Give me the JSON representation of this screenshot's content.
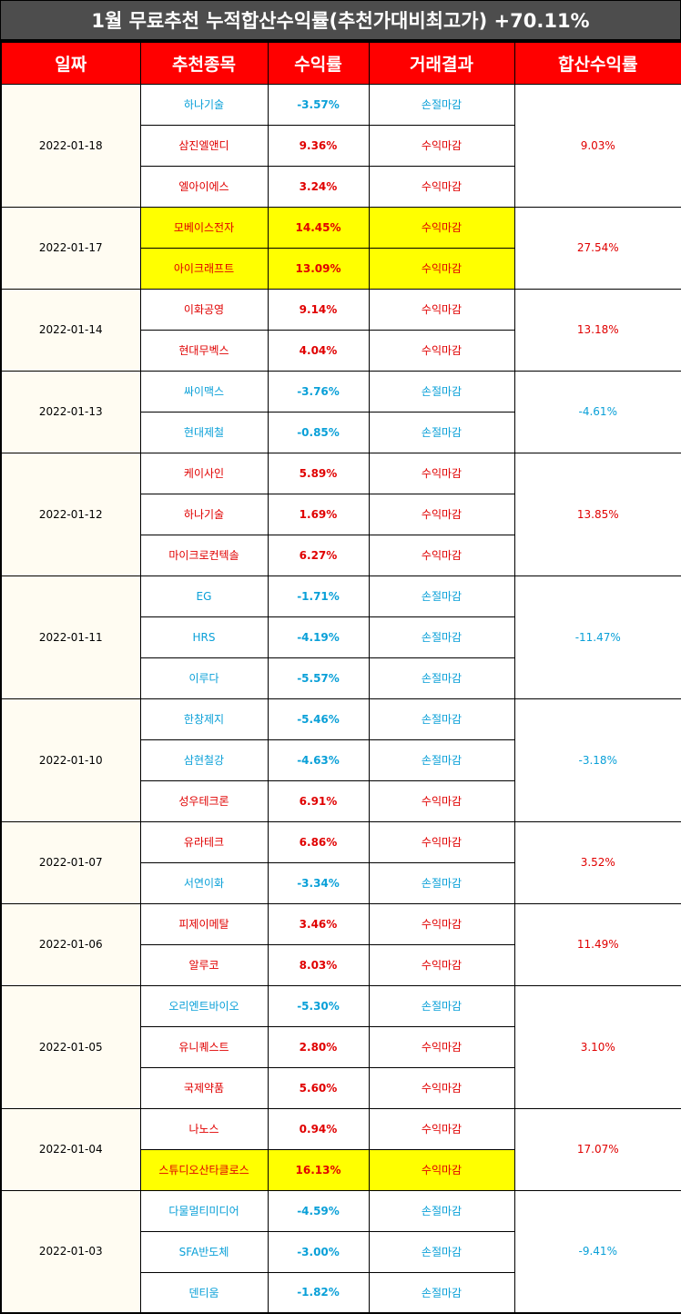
{
  "title": "1월 무료추천 누적합산수익률(추천가대비최고가) +70.11%",
  "headers": [
    "일짜",
    "추천종목",
    "수익률",
    "거래결과",
    "합산수익률"
  ],
  "colors": {
    "header_bg": "#ff0000",
    "title_bg": "#4d4d4d",
    "positive": "#e00000",
    "negative": "#0aa0d8",
    "highlight": "#ffff00",
    "date_bg": "#fffcf2"
  },
  "groups": [
    {
      "date": "2022-01-18",
      "total": "9.03%",
      "rows": [
        {
          "name": "하나기술",
          "pct": "-3.57%",
          "result": "손절마감"
        },
        {
          "name": "삼진엘앤디",
          "pct": "9.36%",
          "result": "수익마감"
        },
        {
          "name": "엘아이에스",
          "pct": "3.24%",
          "result": "수익마감"
        }
      ]
    },
    {
      "date": "2022-01-17",
      "total": "27.54%",
      "rows": [
        {
          "name": "모베이스전자",
          "pct": "14.45%",
          "result": "수익마감",
          "highlight": true
        },
        {
          "name": "아이크래프트",
          "pct": "13.09%",
          "result": "수익마감",
          "highlight": true
        }
      ]
    },
    {
      "date": "2022-01-14",
      "total": "13.18%",
      "rows": [
        {
          "name": "이화공영",
          "pct": "9.14%",
          "result": "수익마감"
        },
        {
          "name": "현대무벡스",
          "pct": "4.04%",
          "result": "수익마감"
        }
      ]
    },
    {
      "date": "2022-01-13",
      "total": "-4.61%",
      "rows": [
        {
          "name": "싸이맥스",
          "pct": "-3.76%",
          "result": "손절마감"
        },
        {
          "name": "현대제철",
          "pct": "-0.85%",
          "result": "손절마감"
        }
      ]
    },
    {
      "date": "2022-01-12",
      "total": "13.85%",
      "rows": [
        {
          "name": "케이사인",
          "pct": "5.89%",
          "result": "수익마감"
        },
        {
          "name": "하나기술",
          "pct": "1.69%",
          "result": "수익마감"
        },
        {
          "name": "마이크로컨텍솔",
          "pct": "6.27%",
          "result": "수익마감"
        }
      ]
    },
    {
      "date": "2022-01-11",
      "total": "-11.47%",
      "rows": [
        {
          "name": "EG",
          "pct": "-1.71%",
          "result": "손절마감"
        },
        {
          "name": "HRS",
          "pct": "-4.19%",
          "result": "손절마감"
        },
        {
          "name": "이루다",
          "pct": "-5.57%",
          "result": "손절마감"
        }
      ]
    },
    {
      "date": "2022-01-10",
      "total": "-3.18%",
      "rows": [
        {
          "name": "한창제지",
          "pct": "-5.46%",
          "result": "손절마감"
        },
        {
          "name": "삼현철강",
          "pct": "-4.63%",
          "result": "손절마감"
        },
        {
          "name": "성우테크론",
          "pct": "6.91%",
          "result": "수익마감"
        }
      ]
    },
    {
      "date": "2022-01-07",
      "total": "3.52%",
      "rows": [
        {
          "name": "유라테크",
          "pct": "6.86%",
          "result": "수익마감"
        },
        {
          "name": "서연이화",
          "pct": "-3.34%",
          "result": "손절마감"
        }
      ]
    },
    {
      "date": "2022-01-06",
      "total": "11.49%",
      "rows": [
        {
          "name": "피제이메탈",
          "pct": "3.46%",
          "result": "수익마감"
        },
        {
          "name": "알루코",
          "pct": "8.03%",
          "result": "수익마감"
        }
      ]
    },
    {
      "date": "2022-01-05",
      "total": "3.10%",
      "rows": [
        {
          "name": "오리엔트바이오",
          "pct": "-5.30%",
          "result": "손절마감"
        },
        {
          "name": "유니퀘스트",
          "pct": "2.80%",
          "result": "수익마감"
        },
        {
          "name": "국제약품",
          "pct": "5.60%",
          "result": "수익마감"
        }
      ]
    },
    {
      "date": "2022-01-04",
      "total": "17.07%",
      "rows": [
        {
          "name": "나노스",
          "pct": "0.94%",
          "result": "수익마감"
        },
        {
          "name": "스튜디오산타클로스",
          "pct": "16.13%",
          "result": "수익마감",
          "highlight": true
        }
      ]
    },
    {
      "date": "2022-01-03",
      "total": "-9.41%",
      "rows": [
        {
          "name": "다물멀티미디어",
          "pct": "-4.59%",
          "result": "손절마감"
        },
        {
          "name": "SFA반도체",
          "pct": "-3.00%",
          "result": "손절마감"
        },
        {
          "name": "덴티움",
          "pct": "-1.82%",
          "result": "손절마감"
        }
      ]
    }
  ]
}
